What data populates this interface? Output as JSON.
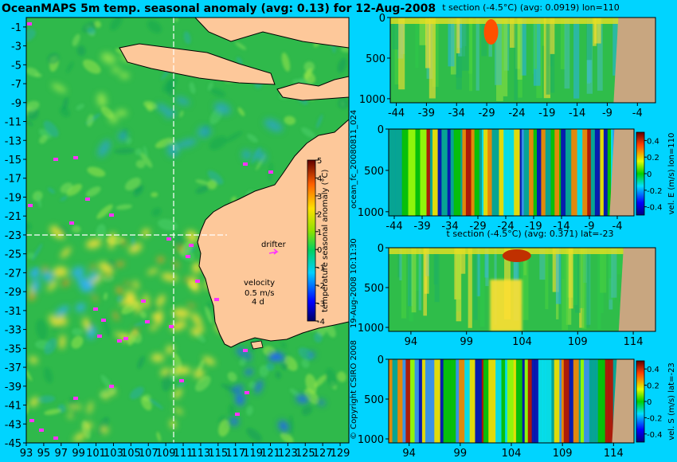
{
  "figure": {
    "title": "OceanMAPS 5m temp. seasonal anomaly (avg: 0.13) for 12-Aug-2008",
    "colors": {
      "background": "#00d4ff",
      "land": "#fdc89a",
      "sea_mean": "#33c24a",
      "drifter": "#ff33ff"
    }
  },
  "chart_data": [
    {
      "type": "heatmap",
      "name": "map",
      "title": "OceanMAPS 5m temp. seasonal anomaly (avg: 0.13) for 12-Aug-2008",
      "x_ticks": [
        "93",
        "95",
        "97",
        "99",
        "101",
        "103",
        "105",
        "107",
        "109",
        "111",
        "113",
        "115",
        "117",
        "119",
        "121",
        "123",
        "125",
        "127",
        "129"
      ],
      "y_ticks": [
        "-1",
        "-3",
        "-5",
        "-7",
        "-9",
        "-11",
        "-13",
        "-15",
        "-17",
        "-19",
        "-21",
        "-23",
        "-25",
        "-27",
        "-29",
        "-31",
        "-33",
        "-35",
        "-37",
        "-39",
        "-41",
        "-43",
        "-45"
      ],
      "xlim": [
        93,
        130
      ],
      "ylim": [
        -45,
        0
      ],
      "section_lines": {
        "lon": 110,
        "lat": -23
      },
      "colorbar": {
        "label": "temperature seasonal anomaly (°C)",
        "ticks": [
          "5",
          "4",
          "3",
          "2",
          "1",
          "0",
          "-1",
          "-2",
          "-3",
          "-4"
        ],
        "range": [
          -4,
          5
        ]
      },
      "annotations": {
        "drifter": "drifter",
        "velocity": "velocity",
        "speed": "0.5 m/s",
        "age": "4 d"
      }
    },
    {
      "type": "heatmap",
      "name": "t-section-lon",
      "title": "t section (-4.5°C) (avg: 0.0919) lon=110",
      "x_ticks": [
        "-44",
        "-39",
        "-34",
        "-29",
        "-24",
        "-19",
        "-14",
        "-9",
        "-4"
      ],
      "y_ticks": [
        "0",
        "500",
        "1000"
      ],
      "xlim": [
        -45,
        -1
      ],
      "ylim": [
        1050,
        0
      ]
    },
    {
      "type": "heatmap",
      "name": "vel-section-lon",
      "title": "",
      "x_ticks": [
        "-44",
        "-39",
        "-34",
        "-29",
        "-24",
        "-19",
        "-14",
        "-9",
        "-4"
      ],
      "y_ticks": [
        "0",
        "500",
        "1000"
      ],
      "xlim": [
        -45,
        -1
      ],
      "ylim": [
        1050,
        0
      ],
      "colorbar": {
        "label": "vel. E (m/s) lon=110",
        "ticks": [
          "0.4",
          "0.2",
          "0",
          "-0.2",
          "-0.4"
        ],
        "range": [
          -0.5,
          0.5
        ]
      }
    },
    {
      "type": "heatmap",
      "name": "t-section-lat",
      "title": "t section (-4.5°C) (avg: 0.371) lat=-23",
      "x_ticks": [
        "94",
        "99",
        "104",
        "109",
        "114"
      ],
      "y_ticks": [
        "0",
        "500",
        "1000"
      ],
      "xlim": [
        92,
        116
      ],
      "ylim": [
        1050,
        0
      ]
    },
    {
      "type": "heatmap",
      "name": "vel-section-lat",
      "title": "",
      "x_ticks": [
        "94",
        "99",
        "104",
        "109",
        "114"
      ],
      "y_ticks": [
        "0",
        "500",
        "1000"
      ],
      "xlim": [
        92,
        116
      ],
      "ylim": [
        1050,
        0
      ],
      "colorbar": {
        "label": "vel. S (m/s) lat=-23",
        "ticks": [
          "0.4",
          "0.2",
          "0",
          "-0.2",
          "-0.4"
        ],
        "range": [
          -0.5,
          0.5
        ]
      }
    }
  ],
  "side_labels": {
    "run": "ocean_fc_20080811_024",
    "date": "19-Aug-2008 10:11:30",
    "copyright": "© Copyright CSIRO 2008"
  }
}
